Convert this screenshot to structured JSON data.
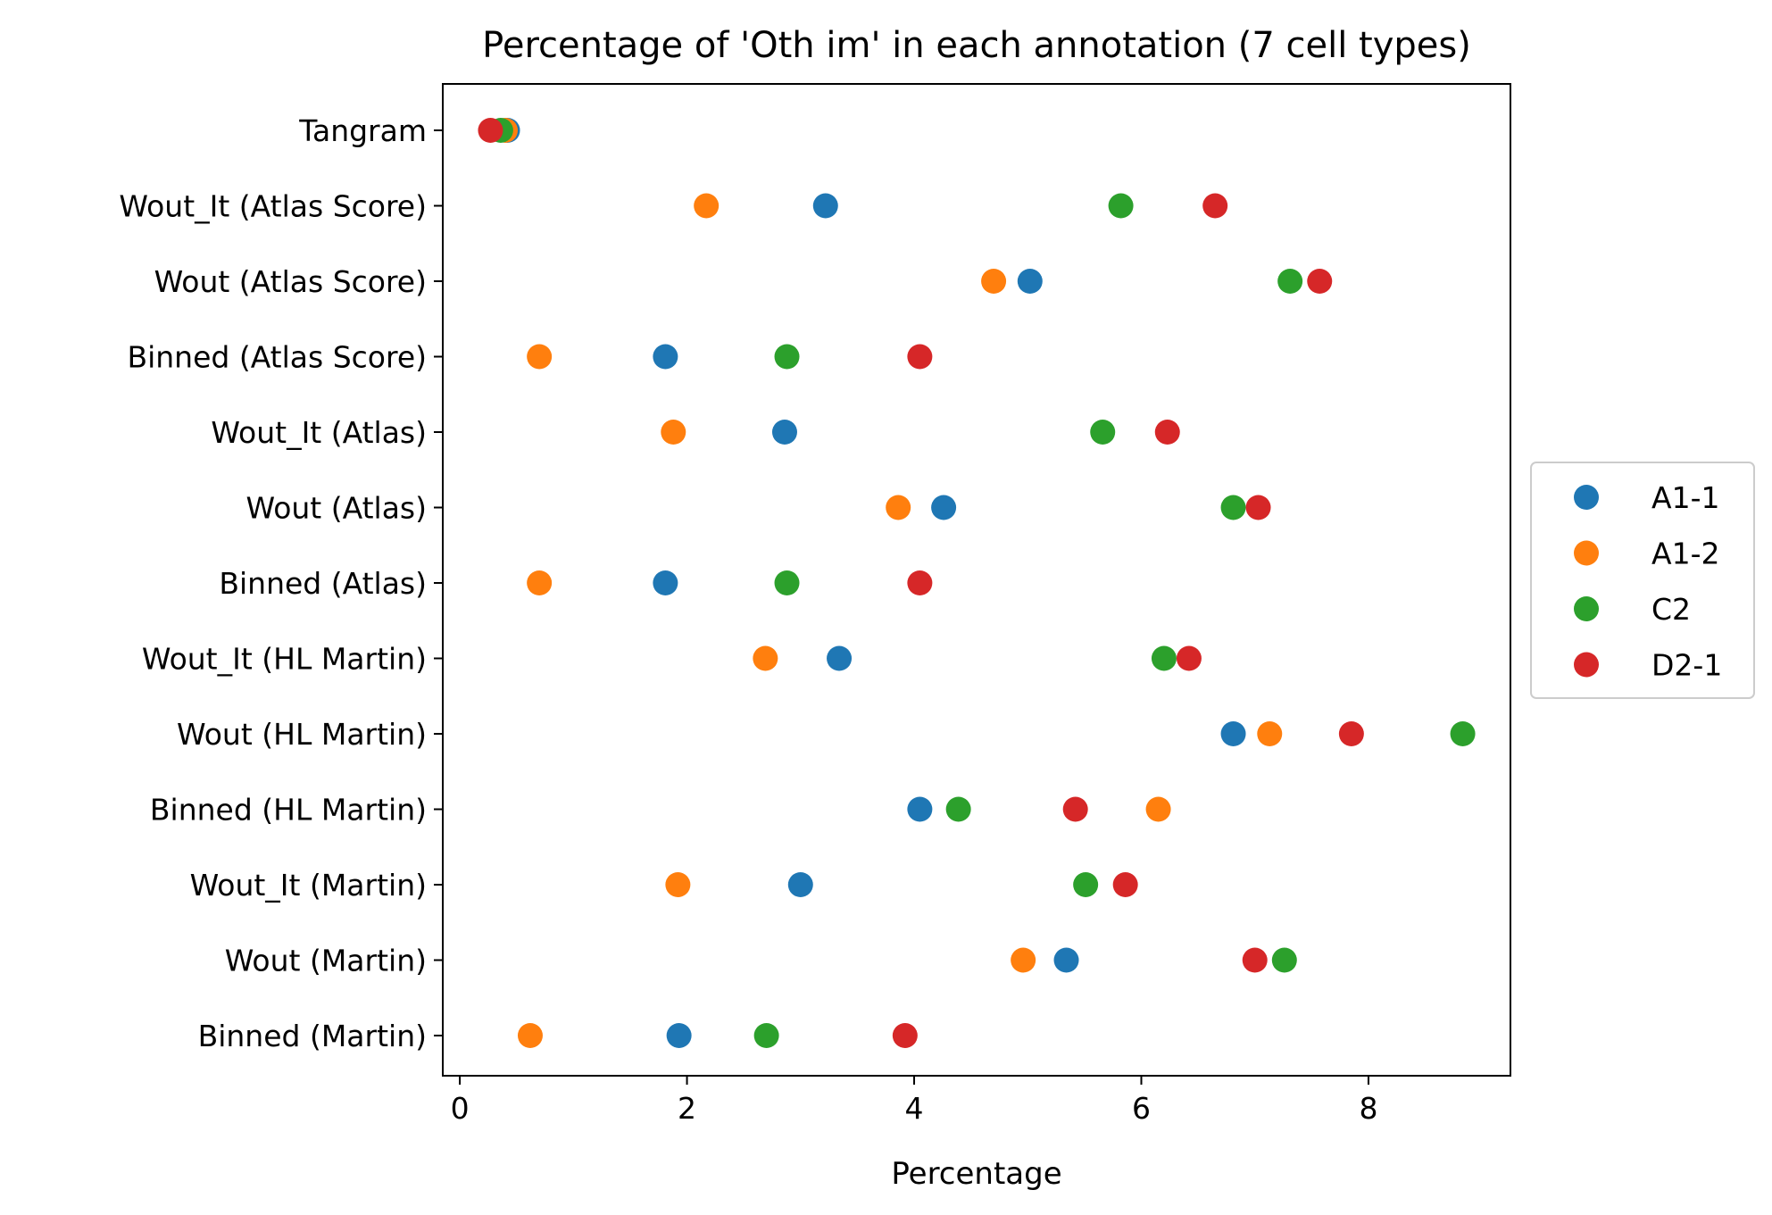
{
  "chart_data": {
    "type": "scatter",
    "title": "Percentage of 'Oth im' in each annotation (7 cell types)",
    "xlabel": "Percentage",
    "ylabel": "",
    "xlim": [
      -0.15,
      9.25
    ],
    "xticks": [
      0,
      2,
      4,
      6,
      8
    ],
    "grid": false,
    "legend_position": "right",
    "categories": [
      "Tangram",
      "Wout_It (Atlas Score)",
      "Wout (Atlas Score)",
      "Binned (Atlas Score)",
      "Wout_It (Atlas)",
      "Wout (Atlas)",
      "Binned (Atlas)",
      "Wout_It (HL Martin)",
      "Wout (HL Martin)",
      "Binned (HL Martin)",
      "Wout_It (Martin)",
      "Wout (Martin)",
      "Binned (Martin)"
    ],
    "series": [
      {
        "name": "A1-1",
        "color": "#1f77b4",
        "values": [
          0.42,
          3.22,
          5.02,
          1.81,
          2.86,
          4.26,
          1.81,
          3.34,
          6.81,
          4.05,
          3.0,
          5.34,
          1.93
        ]
      },
      {
        "name": "A1-2",
        "color": "#ff7f0e",
        "values": [
          0.4,
          2.17,
          4.7,
          0.7,
          1.88,
          3.86,
          0.7,
          2.69,
          7.13,
          6.15,
          1.92,
          4.96,
          0.62
        ]
      },
      {
        "name": "C2",
        "color": "#2ca02c",
        "values": [
          0.36,
          5.82,
          7.31,
          2.88,
          5.66,
          6.81,
          2.88,
          6.2,
          8.83,
          4.39,
          5.51,
          7.26,
          2.7
        ]
      },
      {
        "name": "D2-1",
        "color": "#d62728",
        "values": [
          0.27,
          6.65,
          7.57,
          4.05,
          6.23,
          7.03,
          4.05,
          6.42,
          7.85,
          5.42,
          5.86,
          7.0,
          3.92
        ]
      }
    ]
  }
}
